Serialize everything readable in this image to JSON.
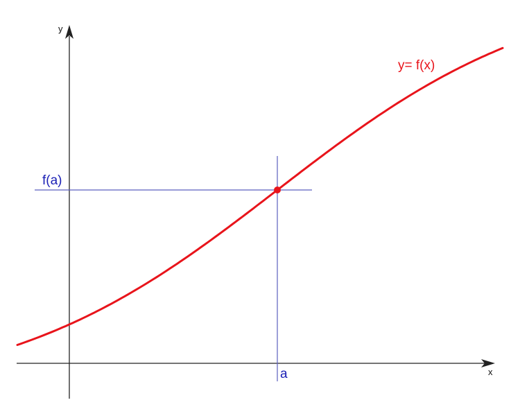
{
  "diagram": {
    "x_axis_label": "x",
    "y_axis_label": "y",
    "curve_label": "y= f(x)",
    "point_x_label": "a",
    "point_y_label": "f(a)"
  },
  "colors": {
    "axis": "#222222",
    "curve": "#e8141b",
    "guide": "#5b5fbf",
    "guide_text": "#1a1fb5",
    "point": "#e8141b"
  },
  "icons": {
    "x_axis_arrow": "arrowhead-right-icon",
    "y_axis_arrow": "arrowhead-up-icon"
  }
}
